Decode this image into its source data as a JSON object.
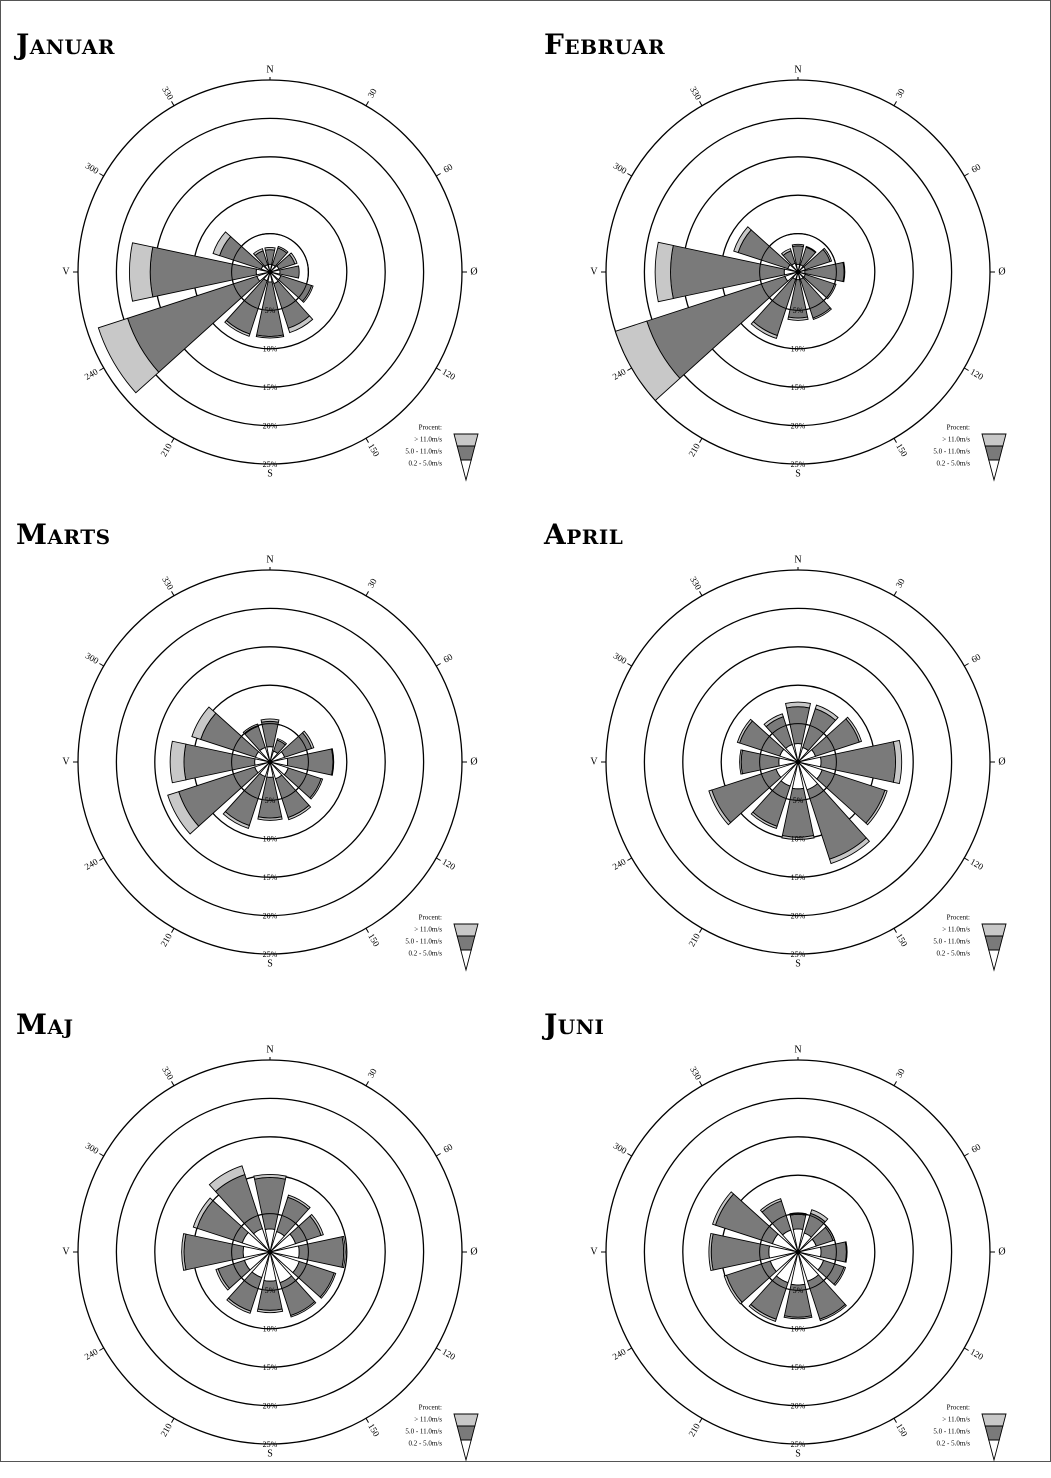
{
  "chart_data": [
    {
      "type": "windrose",
      "title": "Januar",
      "directions": [
        0,
        30,
        60,
        90,
        120,
        150,
        180,
        210,
        240,
        270,
        300,
        330
      ],
      "series": [
        {
          "name": "0.2 - 5.0m/s",
          "values": [
            1.0,
            1.0,
            1.2,
            1.3,
            1.5,
            1.6,
            1.3,
            1.2,
            1.8,
            1.8,
            1.2,
            1.0
          ]
        },
        {
          "name": "5.0 - 11.0m/s",
          "values": [
            1.9,
            2.3,
            2.2,
            2.5,
            4.2,
            6.1,
            7.1,
            7.3,
            17.7,
            13.8,
            5.7,
            1.9
          ]
        },
        {
          "name": "> 11.0m/s",
          "values": [
            0.3,
            0.2,
            0.3,
            0.0,
            0.2,
            0.6,
            0.2,
            0.3,
            4.0,
            2.7,
            0.9,
            0.3
          ]
        }
      ]
    },
    {
      "type": "windrose",
      "title": "Februar",
      "directions": [
        0,
        30,
        60,
        90,
        120,
        150,
        180,
        210,
        240,
        270,
        300,
        330
      ],
      "series": [
        {
          "name": "0.2 - 5.0m/s",
          "values": [
            1.0,
            1.0,
            1.0,
            0.9,
            1.0,
            1.0,
            1.0,
            1.0,
            1.8,
            1.8,
            1.4,
            1.2
          ]
        },
        {
          "name": "5.0 - 11.0m/s",
          "values": [
            2.4,
            2.4,
            3.4,
            5.1,
            4.0,
            5.3,
            5.0,
            7.7,
            18.9,
            14.8,
            6.8,
            1.7
          ]
        },
        {
          "name": "> 11.0m/s",
          "values": [
            0.2,
            0.1,
            0.2,
            0.1,
            0.2,
            0.2,
            0.3,
            0.4,
            4.3,
            2.0,
            0.6,
            0.3
          ]
        }
      ]
    },
    {
      "type": "windrose",
      "title": "Marts",
      "directions": [
        0,
        30,
        60,
        90,
        120,
        150,
        180,
        210,
        240,
        270,
        300,
        330
      ],
      "series": [
        {
          "name": "0.2 - 5.0m/s",
          "values": [
            2.0,
            1.5,
            2.0,
            2.3,
            2.5,
            2.3,
            2.0,
            2.0,
            2.1,
            2.0,
            2.0,
            2.0
          ]
        },
        {
          "name": "5.0 - 11.0m/s",
          "values": [
            3.3,
            1.5,
            3.7,
            5.9,
            4.5,
            5.3,
            5.3,
            6.7,
            10.4,
            9.2,
            7.5,
            2.9
          ]
        },
        {
          "name": "> 11.0m/s",
          "values": [
            0.3,
            0.2,
            0.3,
            0.1,
            0.2,
            0.3,
            0.3,
            0.4,
            1.5,
            1.8,
            1.2,
            0.3
          ]
        }
      ]
    },
    {
      "type": "windrose",
      "title": "April",
      "directions": [
        0,
        30,
        60,
        90,
        120,
        150,
        180,
        210,
        240,
        270,
        300,
        330
      ],
      "series": [
        {
          "name": "0.2 - 5.0m/s",
          "values": [
            2.4,
            2.0,
            2.4,
            3.0,
            3.3,
            3.8,
            3.5,
            3.3,
            3.0,
            2.5,
            2.5,
            2.4
          ]
        },
        {
          "name": "5.0 - 11.0m/s",
          "values": [
            4.8,
            5.3,
            6.0,
            9.7,
            8.6,
            9.5,
            6.3,
            5.5,
            8.8,
            4.9,
            5.5,
            3.8
          ]
        },
        {
          "name": "> 11.0m/s",
          "values": [
            0.6,
            0.5,
            0.3,
            0.8,
            0.3,
            0.6,
            0.3,
            0.3,
            0.4,
            0.2,
            0.3,
            0.4
          ]
        }
      ]
    },
    {
      "type": "windrose",
      "title": "Maj",
      "directions": [
        0,
        30,
        60,
        90,
        120,
        150,
        180,
        210,
        240,
        270,
        300,
        330
      ],
      "series": [
        {
          "name": "0.2 - 5.0m/s",
          "values": [
            3.0,
            2.8,
            3.5,
            3.8,
            4.0,
            4.2,
            3.8,
            3.5,
            3.5,
            3.5,
            3.8,
            3.2
          ]
        },
        {
          "name": "5.0 - 11.0m/s",
          "values": [
            6.7,
            4.7,
            3.5,
            5.8,
            4.8,
            4.5,
            3.8,
            4.6,
            3.6,
            7.7,
            6.2,
            7.4
          ]
        },
        {
          "name": "> 11.0m/s",
          "values": [
            0.4,
            0.3,
            0.3,
            0.2,
            0.2,
            0.2,
            0.3,
            0.3,
            0.3,
            0.3,
            0.5,
            1.2
          ]
        }
      ]
    },
    {
      "type": "windrose",
      "title": "Juni",
      "directions": [
        0,
        30,
        60,
        90,
        120,
        150,
        180,
        210,
        240,
        270,
        300,
        330
      ],
      "series": [
        {
          "name": "0.2 - 5.0m/s",
          "values": [
            3.0,
            2.6,
            2.5,
            3.0,
            3.5,
            4.0,
            4.3,
            4.2,
            3.8,
            3.8,
            3.5,
            3.0
          ]
        },
        {
          "name": "5.0 - 11.0m/s",
          "values": [
            1.9,
            2.7,
            2.3,
            3.3,
            2.8,
            5.2,
            4.2,
            5.0,
            6.0,
            7.5,
            7.8,
            4.0
          ]
        },
        {
          "name": "> 11.0m/s",
          "values": [
            0.2,
            0.5,
            0.2,
            0.1,
            0.2,
            0.2,
            0.2,
            0.3,
            0.3,
            0.3,
            0.4,
            0.3
          ]
        }
      ]
    }
  ],
  "axis": {
    "compass": {
      "n": "N",
      "e": "Ø",
      "s": "S",
      "w": "V"
    },
    "angle_labels": [
      "30",
      "60",
      "120",
      "150",
      "210",
      "240",
      "300",
      "330"
    ],
    "radial_max": 25,
    "ring_labels": [
      "5%",
      "10%",
      "15%",
      "20%",
      "25%"
    ]
  },
  "legend": {
    "title": "Procent:",
    "items": [
      {
        "label": "> 11.0m/s",
        "color": "#c8c8c8"
      },
      {
        "label": "5.0 - 11.0m/s",
        "color": "#7a7a7a"
      },
      {
        "label": "0.2 - 5.0m/s",
        "color": "#ffffff"
      }
    ]
  },
  "colors": {
    "calm": "#ffffff",
    "mid": "#7a7a7a",
    "high": "#c8c8c8",
    "line": "#000000"
  }
}
